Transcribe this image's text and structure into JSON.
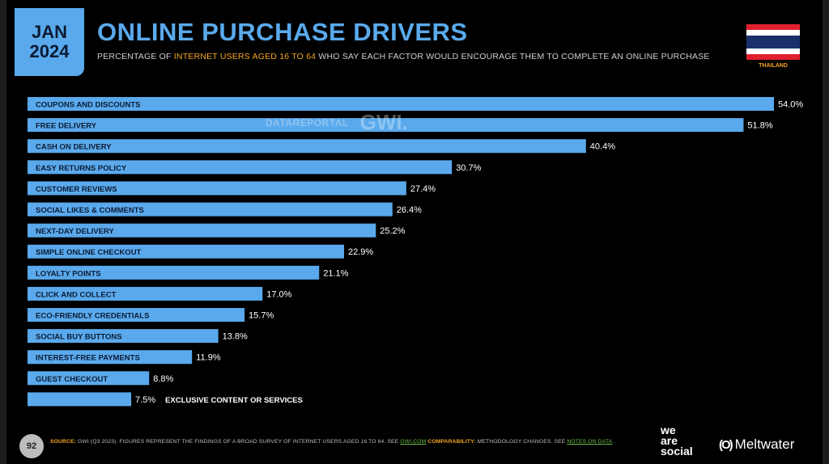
{
  "header": {
    "date_line1": "JAN",
    "date_line2": "2024",
    "title": "ONLINE PURCHASE DRIVERS",
    "subtitle_pre": "PERCENTAGE OF ",
    "subtitle_highlight": "INTERNET USERS AGED 16 TO 64",
    "subtitle_post": " WHO SAY EACH FACTOR WOULD ENCOURAGE THEM TO COMPLETE AN ONLINE PURCHASE",
    "country": "THAILAND"
  },
  "watermark": {
    "datareportal": "DATAREPORTAL",
    "gwi": "GWI."
  },
  "colors": {
    "accent": "#5aa9ec",
    "highlight": "#f5a623",
    "background": "#000000",
    "flag_red": "#e0202e",
    "flag_white": "#ffffff",
    "flag_blue": "#1a2f6b"
  },
  "chart_data": {
    "type": "bar",
    "orientation": "horizontal",
    "categories": [
      "COUPONS AND DISCOUNTS",
      "FREE DELIVERY",
      "CASH ON DELIVERY",
      "EASY RETURNS POLICY",
      "CUSTOMER REVIEWS",
      "SOCIAL LIKES & COMMENTS",
      "NEXT-DAY DELIVERY",
      "SIMPLE ONLINE CHECKOUT",
      "LOYALTY POINTS",
      "CLICK AND COLLECT",
      "ECO-FRIENDLY CREDENTIALS",
      "SOCIAL BUY BUTTONS",
      "INTEREST-FREE PAYMENTS",
      "GUEST CHECKOUT",
      "EXCLUSIVE CONTENT OR SERVICES"
    ],
    "values": [
      54.0,
      51.8,
      40.4,
      30.7,
      27.4,
      26.4,
      25.2,
      22.9,
      21.1,
      17.0,
      15.7,
      13.8,
      11.9,
      8.8,
      7.5
    ],
    "value_labels": [
      "54.0%",
      "51.8%",
      "40.4%",
      "30.7%",
      "27.4%",
      "26.4%",
      "25.2%",
      "22.9%",
      "21.1%",
      "17.0%",
      "15.7%",
      "13.8%",
      "11.9%",
      "8.8%",
      "7.5%"
    ],
    "xlim": [
      0,
      54
    ],
    "bar_color": "#5aa9ec",
    "grid": false
  },
  "footer": {
    "page_number": "92",
    "source_label": "SOURCE:",
    "source_text": " GWI (Q3 2023). FIGURES REPRESENT THE FINDINGS OF A BROAD SURVEY OF INTERNET USERS AGED 16 TO 64. SEE ",
    "source_link": "GWI.COM",
    "comparability_label": " COMPARABILITY:",
    "comparability_text": " METHODOLOGY CHANGES. SEE ",
    "notes_link": "NOTES ON DATA",
    "notes_end": ".",
    "brand1_line1": "we",
    "brand1_line2": "are",
    "brand1_line3": "social",
    "brand2_icon": "(O)",
    "brand2": "Meltwater"
  }
}
